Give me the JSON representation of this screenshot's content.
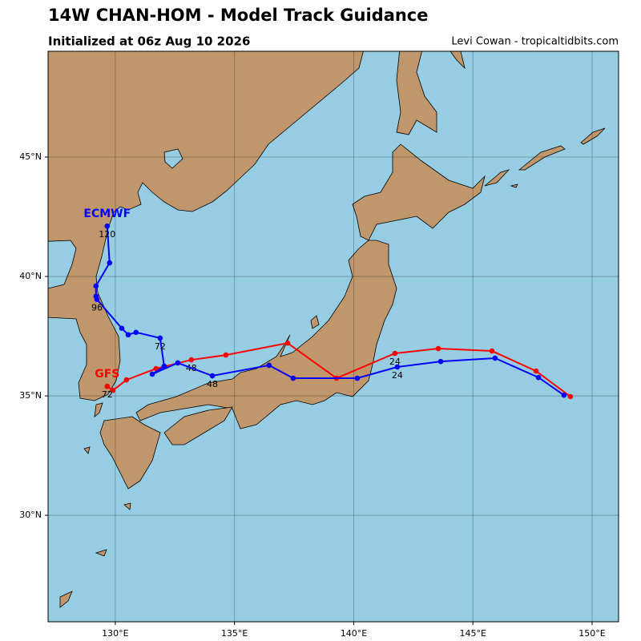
{
  "chart_data": {
    "type": "track",
    "title": "14W CHAN-HOM - Model Track Guidance",
    "subtitle": "Initialized at 06z Aug 10 2026",
    "credit": "Levi Cowan - tropicaltidbits.com",
    "xlim": [
      127.18,
      151.11
    ],
    "ylim": [
      25.54,
      49.43
    ],
    "xticks": [
      {
        "value": 130,
        "label": "130°E"
      },
      {
        "value": 135,
        "label": "135°E"
      },
      {
        "value": 140,
        "label": "140°E"
      },
      {
        "value": 145,
        "label": "145°E"
      },
      {
        "value": 150,
        "label": "150°E"
      }
    ],
    "yticks": [
      {
        "value": 30,
        "label": "30°N"
      },
      {
        "value": 35,
        "label": "35°N"
      },
      {
        "value": 40,
        "label": "40°N"
      },
      {
        "value": 45,
        "label": "45°N"
      }
    ],
    "grid": true,
    "series": [
      {
        "name": "GFS",
        "color": "#ff0000",
        "x": [
          149.09,
          147.65,
          145.8,
          143.55,
          141.73,
          139.28,
          137.23,
          134.64,
          133.19,
          131.71,
          130.47,
          129.9,
          129.66
        ],
        "values": [
          34.97,
          36.04,
          36.88,
          36.98,
          36.78,
          35.74,
          37.21,
          36.71,
          36.51,
          36.14,
          35.67,
          35.23,
          35.4
        ],
        "hour_labels": [
          null,
          null,
          null,
          null,
          "24",
          null,
          null,
          null,
          "48",
          null,
          null,
          null,
          "72"
        ]
      },
      {
        "name": "ECMWF",
        "color": "#0000ff",
        "x": [
          148.82,
          147.75,
          145.93,
          143.65,
          141.83,
          140.15,
          137.46,
          136.45,
          134.07,
          132.62,
          131.55,
          132.05,
          131.88,
          130.87,
          130.54,
          130.27,
          129.23,
          129.19,
          129.19,
          129.76,
          129.66
        ],
        "values": [
          35.03,
          35.77,
          36.58,
          36.44,
          36.21,
          35.74,
          35.74,
          36.28,
          35.84,
          36.38,
          35.91,
          36.24,
          37.42,
          37.66,
          37.56,
          37.83,
          39.04,
          39.17,
          39.6,
          40.57,
          42.11
        ],
        "hour_labels": [
          null,
          null,
          null,
          null,
          "24",
          null,
          null,
          null,
          "48",
          null,
          null,
          null,
          "72",
          null,
          null,
          null,
          "96",
          null,
          null,
          null,
          "120"
        ]
      }
    ]
  }
}
